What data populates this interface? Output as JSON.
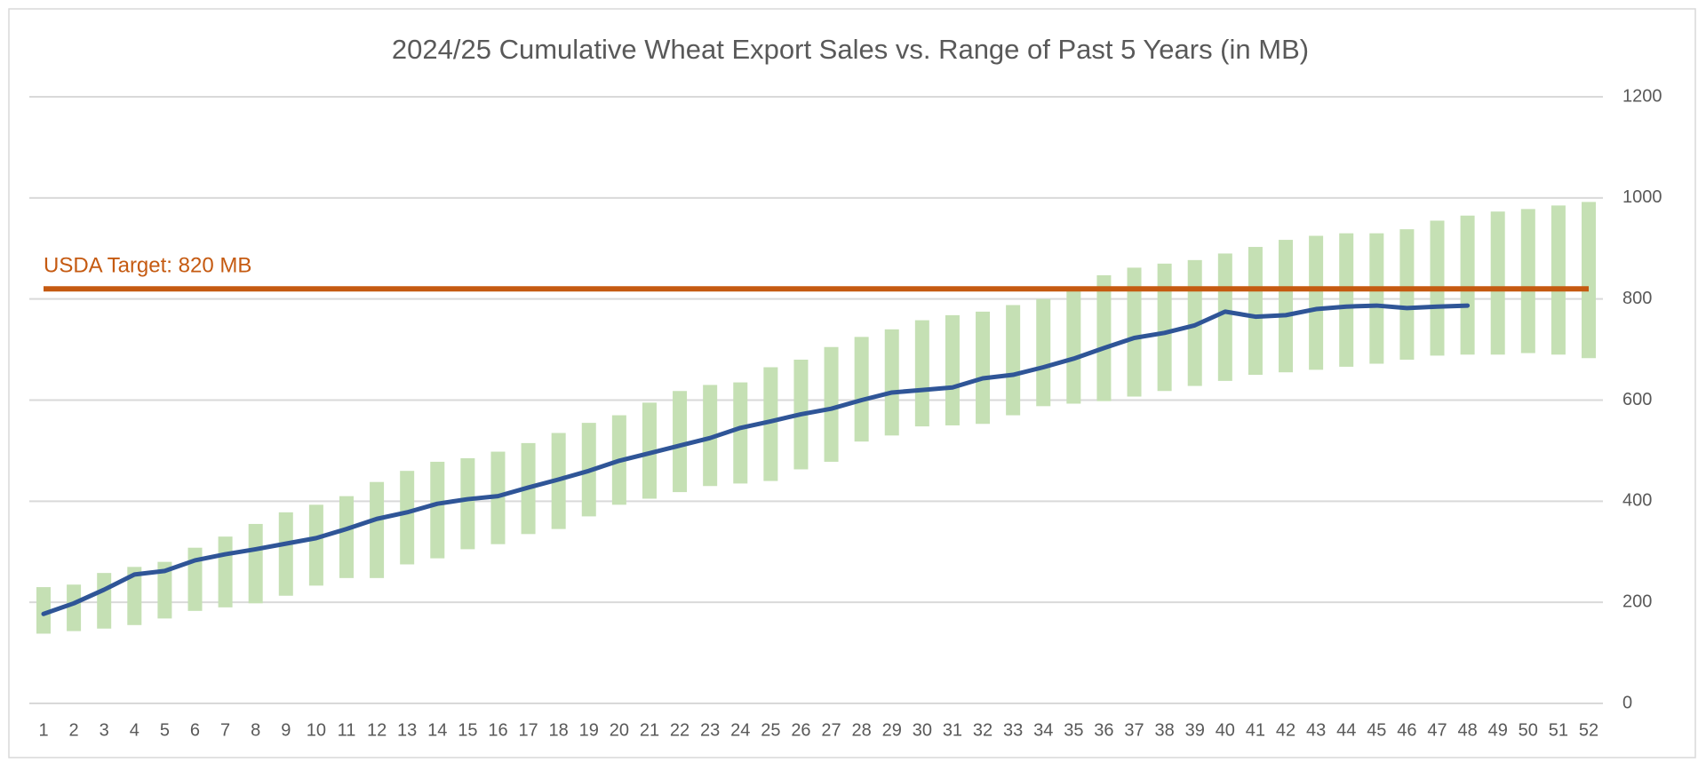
{
  "chart_data": {
    "type": "range_bar_line",
    "title": "2024/25 Cumulative Wheat Export Sales vs. Range of Past 5 Years (in MB)",
    "categories": [
      "1",
      "2",
      "3",
      "4",
      "5",
      "6",
      "7",
      "8",
      "9",
      "10",
      "11",
      "12",
      "13",
      "14",
      "15",
      "16",
      "17",
      "18",
      "19",
      "20",
      "21",
      "22",
      "23",
      "24",
      "25",
      "26",
      "27",
      "28",
      "29",
      "30",
      "31",
      "32",
      "33",
      "34",
      "35",
      "36",
      "37",
      "38",
      "39",
      "40",
      "41",
      "42",
      "43",
      "44",
      "45",
      "46",
      "47",
      "48",
      "49",
      "50",
      "51",
      "52"
    ],
    "range": {
      "color": "#c5e0b4",
      "low": [
        138,
        143,
        148,
        155,
        168,
        183,
        190,
        198,
        213,
        233,
        248,
        248,
        275,
        287,
        305,
        315,
        335,
        345,
        370,
        393,
        405,
        418,
        430,
        435,
        440,
        463,
        478,
        518,
        530,
        548,
        550,
        553,
        570,
        588,
        593,
        598,
        607,
        618,
        628,
        638,
        650,
        655,
        660,
        666,
        672,
        680,
        688,
        690,
        690,
        693,
        690,
        683
      ],
      "high": [
        230,
        235,
        258,
        270,
        280,
        308,
        330,
        355,
        378,
        393,
        410,
        438,
        460,
        478,
        485,
        498,
        515,
        535,
        555,
        570,
        595,
        618,
        630,
        635,
        665,
        680,
        705,
        725,
        740,
        758,
        768,
        775,
        788,
        800,
        820,
        847,
        862,
        870,
        877,
        890,
        903,
        917,
        925,
        930,
        930,
        938,
        955,
        965,
        973,
        978,
        985,
        992
      ]
    },
    "line": {
      "color": "#2f5597",
      "values": [
        177,
        198,
        225,
        255,
        262,
        283,
        295,
        305,
        316,
        327,
        345,
        365,
        378,
        395,
        404,
        410,
        427,
        443,
        460,
        480,
        495,
        510,
        525,
        545,
        558,
        572,
        583,
        600,
        615,
        620,
        625,
        643,
        650,
        665,
        682,
        703,
        723,
        733,
        748,
        775,
        765,
        768,
        780,
        785,
        787,
        782,
        785,
        787,
        null,
        null,
        null,
        null
      ]
    },
    "target": {
      "value": 820,
      "label": "USDA Target: 820 MB",
      "color": "#c55a11"
    },
    "ylim": [
      0,
      1200
    ],
    "yticks": [
      0,
      200,
      400,
      600,
      800,
      1000,
      1200
    ],
    "grid": true
  }
}
